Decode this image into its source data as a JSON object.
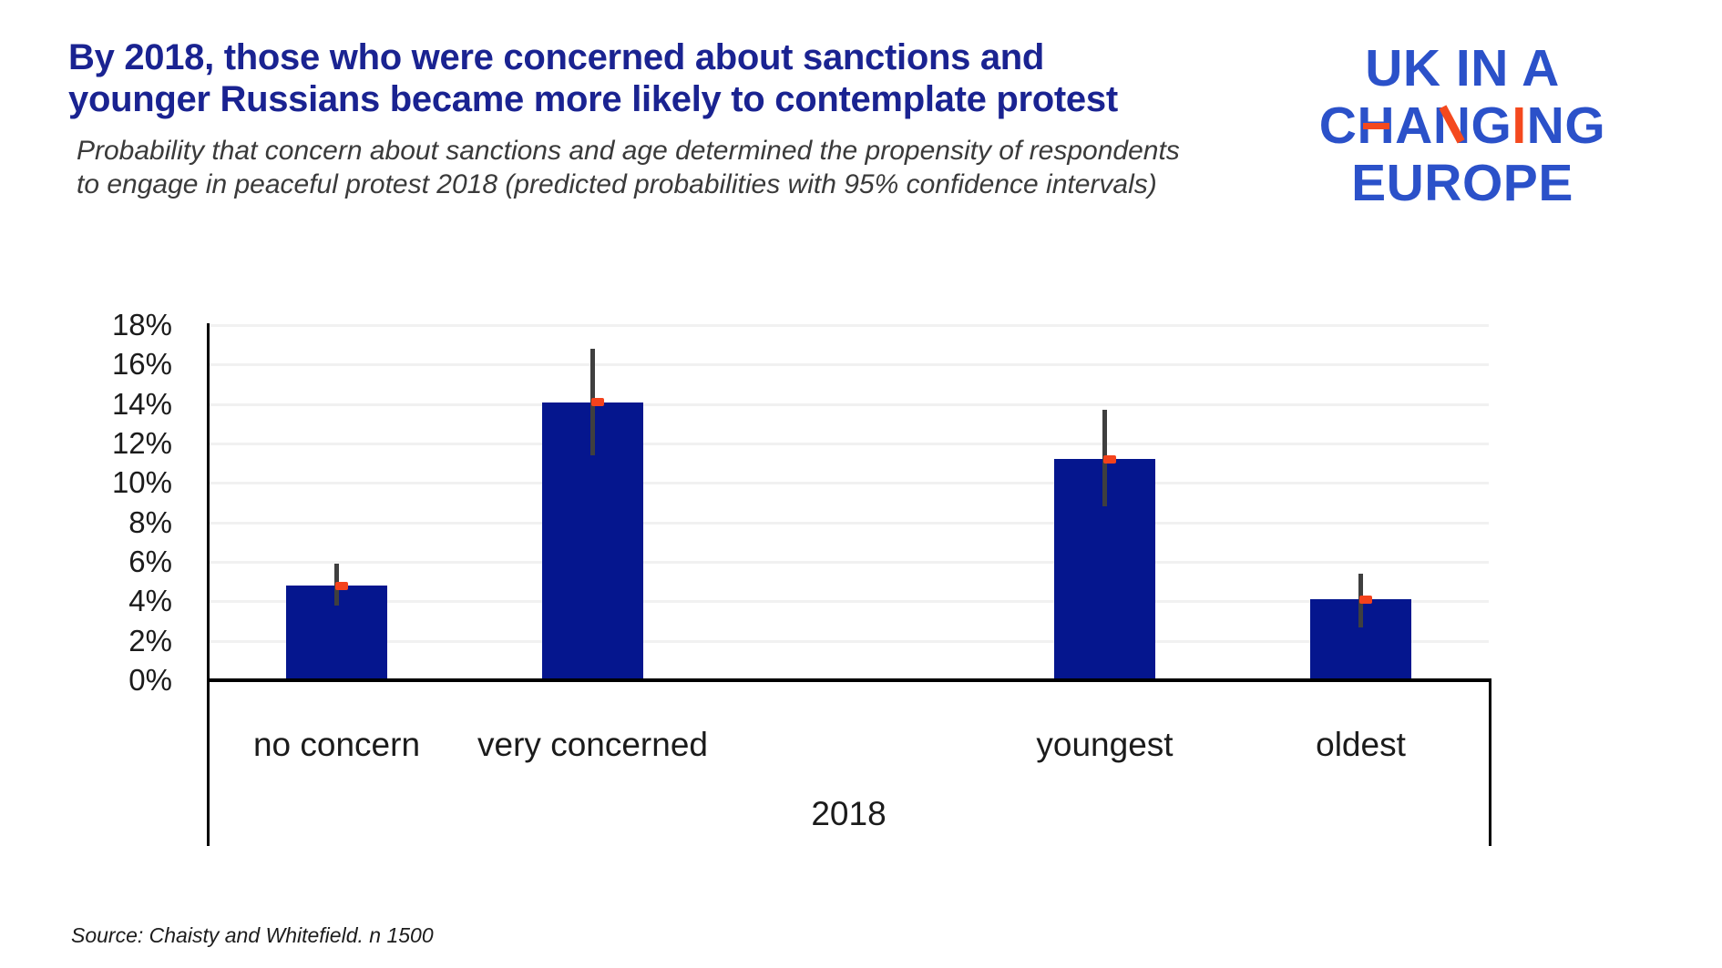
{
  "header": {
    "title_line1": "By 2018, those who were concerned about sanctions and",
    "title_line2": "younger Russians became more likely to contemplate protest",
    "subtitle_line1": "Probability that concern about sanctions and age determined the propensity of respondents",
    "subtitle_line2": "to engage in peaceful protest 2018 (predicted probabilities with 95% confidence intervals)"
  },
  "logo": {
    "line1": "UK IN A",
    "line2": "CHANGING",
    "line2_letters": [
      {
        "ch": "C",
        "accent": "none"
      },
      {
        "ch": "H",
        "accent": "crossbar"
      },
      {
        "ch": "A",
        "accent": "none"
      },
      {
        "ch": "N",
        "accent": "diagonal"
      },
      {
        "ch": "G",
        "accent": "none"
      },
      {
        "ch": "I",
        "accent": "full"
      },
      {
        "ch": "N",
        "accent": "none"
      },
      {
        "ch": "G",
        "accent": "none"
      }
    ],
    "line3": "EUROPE",
    "blue": "#2b51c9",
    "orange": "#f4491e"
  },
  "chart_data": {
    "type": "bar",
    "title": "Probability that concern about sanctions and age determined the propensity of respondents to engage in peaceful protest 2018 (predicted probabilities with 95% confidence intervals)",
    "categories": [
      "no concern",
      "very concerned",
      "",
      "youngest",
      "oldest"
    ],
    "series": [
      {
        "name": "predicted probability (bar)",
        "values": [
          4.8,
          14.1,
          null,
          11.2,
          4.1
        ]
      },
      {
        "name": "point estimate (marker)",
        "values": [
          4.8,
          14.1,
          null,
          11.2,
          4.1
        ]
      }
    ],
    "error_bars": {
      "name": "95% confidence interval",
      "low": [
        3.8,
        11.4,
        null,
        8.8,
        2.7
      ],
      "high": [
        5.9,
        16.8,
        null,
        13.7,
        5.4
      ]
    },
    "x_group_label": "2018",
    "xlabel": "2018",
    "ylabel": "",
    "ylim": [
      0,
      18
    ],
    "y_ticks": [
      {
        "value": 0,
        "label": "0%"
      },
      {
        "value": 2,
        "label": "2%"
      },
      {
        "value": 4,
        "label": "4%"
      },
      {
        "value": 6,
        "label": "6%"
      },
      {
        "value": 8,
        "label": "8%"
      },
      {
        "value": 10,
        "label": "10%"
      },
      {
        "value": 12,
        "label": "12%"
      },
      {
        "value": 14,
        "label": "14%"
      },
      {
        "value": 16,
        "label": "16%"
      },
      {
        "value": 18,
        "label": "18%"
      }
    ],
    "grid": true,
    "legend": false,
    "colors": {
      "bar": "#05168e",
      "marker": "#f4421c",
      "error": "#3f3f3f",
      "axis": "#000000",
      "grid": "#f1f1f1"
    }
  },
  "footer": {
    "source": "Source: Chaisty and Whitefield. n 1500"
  }
}
